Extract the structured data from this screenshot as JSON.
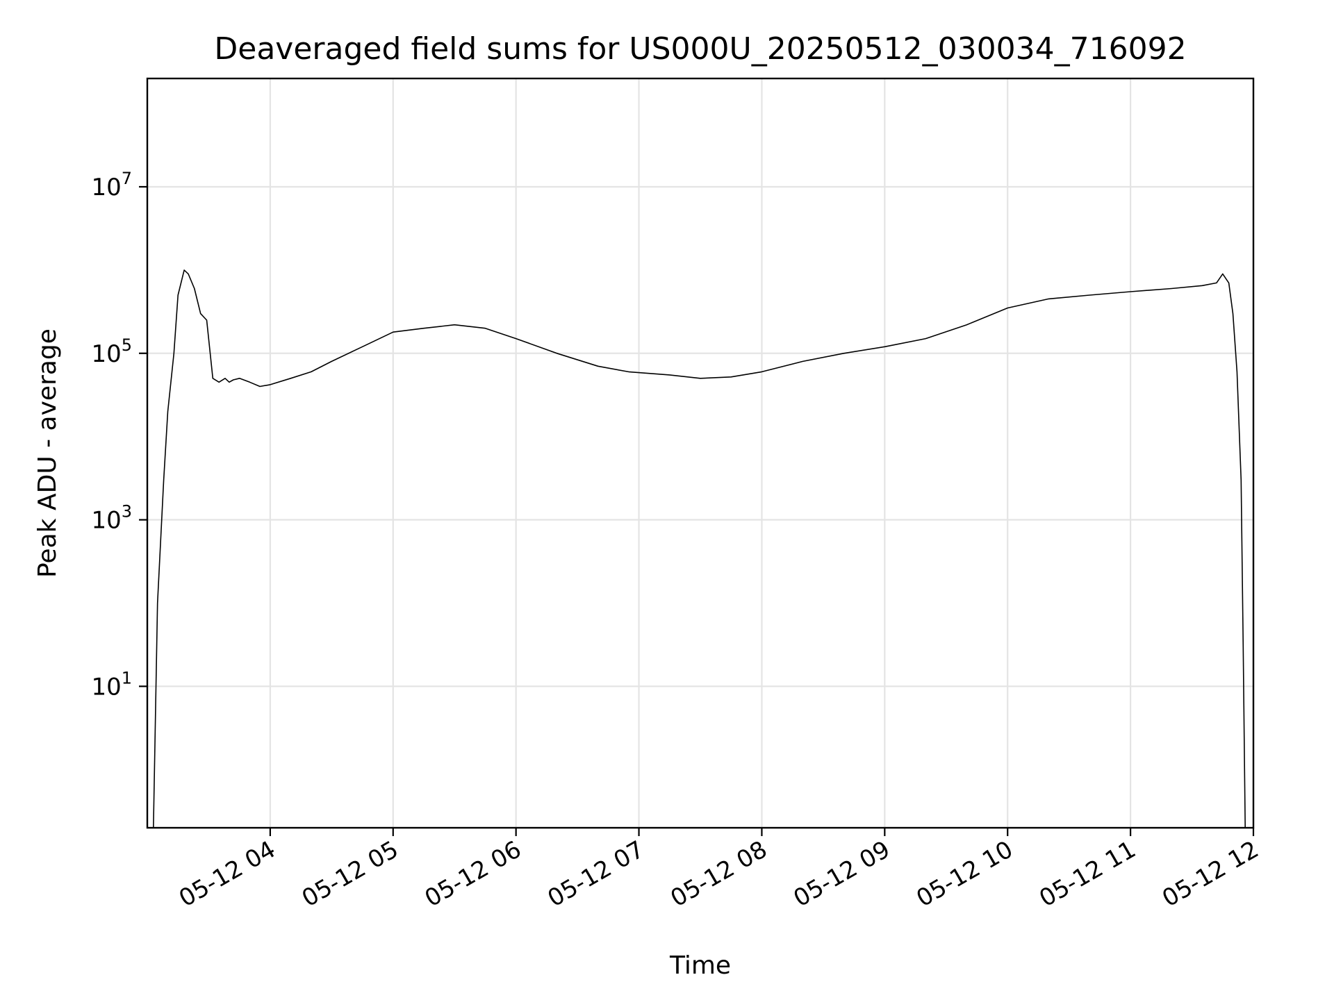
{
  "chart_data": {
    "type": "line",
    "title": "Deaveraged field sums for US000U_20250512_030034_716092",
    "xlabel": "Time",
    "ylabel": "Peak ADU - average",
    "yscale": "log",
    "ylim": [
      0.2,
      200000000
    ],
    "xlim": [
      "2025-05-12 03:00",
      "2025-05-12 12:00"
    ],
    "grid": true,
    "x_ticks": [
      "05-12 04",
      "05-12 05",
      "05-12 06",
      "05-12 07",
      "05-12 08",
      "05-12 09",
      "05-12 10",
      "05-12 11",
      "05-12 12"
    ],
    "y_ticks": [
      {
        "base": "10",
        "exp": "1",
        "value": 10
      },
      {
        "base": "10",
        "exp": "3",
        "value": 1000
      },
      {
        "base": "10",
        "exp": "5",
        "value": 100000
      },
      {
        "base": "10",
        "exp": "7",
        "value": 10000000
      }
    ],
    "line_color": "#000000",
    "series": [
      {
        "x": [
          "2025-05-12 03:03",
          "2025-05-12 03:05",
          "2025-05-12 03:08",
          "2025-05-12 03:10",
          "2025-05-12 03:13",
          "2025-05-12 03:15",
          "2025-05-12 03:18",
          "2025-05-12 03:20",
          "2025-05-12 03:23",
          "2025-05-12 03:26",
          "2025-05-12 03:29",
          "2025-05-12 03:32",
          "2025-05-12 03:35",
          "2025-05-12 03:38",
          "2025-05-12 03:40",
          "2025-05-12 03:42",
          "2025-05-12 03:45",
          "2025-05-12 03:50",
          "2025-05-12 03:55",
          "2025-05-12 04:00",
          "2025-05-12 04:10",
          "2025-05-12 04:20",
          "2025-05-12 04:30",
          "2025-05-12 04:45",
          "2025-05-12 05:00",
          "2025-05-12 05:15",
          "2025-05-12 05:30",
          "2025-05-12 05:45",
          "2025-05-12 06:00",
          "2025-05-12 06:20",
          "2025-05-12 06:40",
          "2025-05-12 06:55",
          "2025-05-12 07:15",
          "2025-05-12 07:30",
          "2025-05-12 07:45",
          "2025-05-12 08:00",
          "2025-05-12 08:20",
          "2025-05-12 08:40",
          "2025-05-12 09:00",
          "2025-05-12 09:20",
          "2025-05-12 09:40",
          "2025-05-12 10:00",
          "2025-05-12 10:20",
          "2025-05-12 10:40",
          "2025-05-12 11:00",
          "2025-05-12 11:20",
          "2025-05-12 11:35",
          "2025-05-12 11:42",
          "2025-05-12 11:45",
          "2025-05-12 11:48",
          "2025-05-12 11:50",
          "2025-05-12 11:52",
          "2025-05-12 11:54",
          "2025-05-12 11:55",
          "2025-05-12 11:56"
        ],
        "y": [
          0.2,
          100,
          3000,
          20000,
          100000,
          500000,
          1000000,
          900000,
          600000,
          300000,
          250000,
          50000,
          45000,
          50000,
          45000,
          48000,
          50000,
          45000,
          40000,
          42000,
          50000,
          60000,
          80000,
          120000,
          180000,
          200000,
          220000,
          200000,
          150000,
          100000,
          70000,
          60000,
          55000,
          50000,
          52000,
          60000,
          80000,
          100000,
          120000,
          150000,
          220000,
          350000,
          450000,
          500000,
          550000,
          600000,
          650000,
          700000,
          900000,
          700000,
          300000,
          60000,
          3000,
          30,
          0.2
        ]
      }
    ]
  }
}
